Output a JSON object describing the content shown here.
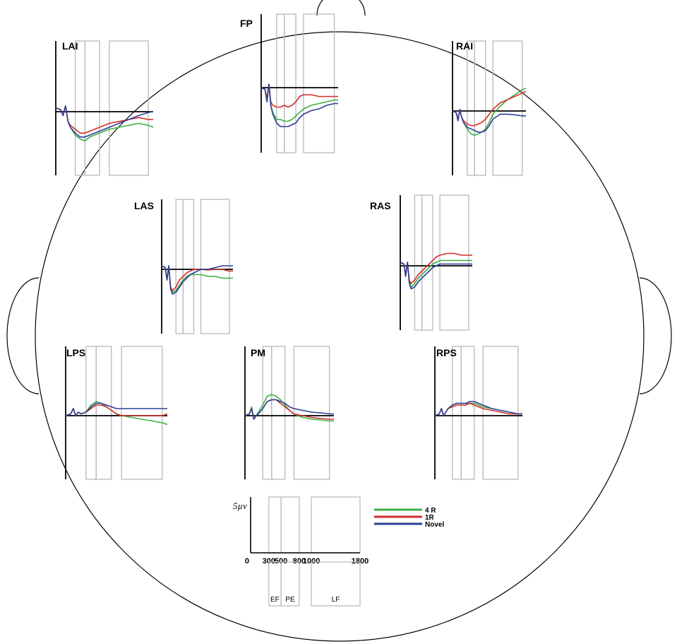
{
  "chart_data": {
    "type": "line",
    "xlabel": "",
    "ylabel": "",
    "scale_label": "5µv",
    "x_ticks": [
      0,
      300,
      500,
      800,
      1000,
      1800
    ],
    "x_tick_labels": [
      "0",
      "300",
      "500",
      "800",
      "1000",
      "1800"
    ],
    "xlim": [
      -100,
      1900
    ],
    "windows": [
      {
        "name": "EF",
        "start": 300,
        "end": 500
      },
      {
        "name": "PE",
        "start": 500,
        "end": 800
      },
      {
        "name": "LF",
        "start": 1000,
        "end": 1800
      }
    ],
    "legend": [
      {
        "name": "4 R",
        "color": "#3cb043"
      },
      {
        "name": "1R",
        "color": "#d42c2c"
      },
      {
        "name": "Novel",
        "color": "#2e3f96"
      }
    ],
    "x": [
      -100,
      0,
      50,
      100,
      150,
      200,
      300,
      400,
      500,
      600,
      700,
      800,
      900,
      1000,
      1200,
      1400,
      1600,
      1800,
      1900
    ],
    "panels": [
      {
        "label": "LAI",
        "series": [
          {
            "name": "4 R",
            "values": [
              1,
              0.5,
              -1,
              1.5,
              -2.5,
              -4,
              -6,
              -7,
              -7.5,
              -6.5,
              -6,
              -5.5,
              -5,
              -4.5,
              -4,
              -3.5,
              -3,
              -3.5,
              -4
            ]
          },
          {
            "name": "1R",
            "values": [
              1,
              0.5,
              -1,
              1.5,
              -2.5,
              -3.5,
              -4.5,
              -5.5,
              -5.5,
              -5,
              -4.5,
              -4,
              -3.5,
              -3,
              -2.5,
              -2,
              -1.5,
              -2,
              -2
            ]
          },
          {
            "name": "Novel",
            "values": [
              1,
              0.5,
              -1,
              1.5,
              -2.5,
              -4,
              -5.5,
              -6.5,
              -6.5,
              -6,
              -5.5,
              -5,
              -4.5,
              -4,
              -3,
              -2,
              -1,
              -0.2,
              0
            ]
          }
        ]
      },
      {
        "label": "FP",
        "series": [
          {
            "name": "4 R",
            "values": [
              0,
              -0.5,
              -4,
              1,
              -5,
              -7,
              -9,
              -9,
              -9.5,
              -9.5,
              -9,
              -8,
              -7,
              -6,
              -5,
              -4.5,
              -4,
              -3.5,
              -3.5
            ]
          },
          {
            "name": "1R",
            "values": [
              0,
              -0.5,
              -3,
              1,
              -4,
              -5,
              -5.5,
              -5.5,
              -5,
              -5.5,
              -5,
              -4,
              -2.5,
              -2,
              -2,
              -2.5,
              -2.5,
              -2.5,
              -2.5
            ]
          },
          {
            "name": "Novel",
            "values": [
              0,
              -0.5,
              -4,
              1,
              -5,
              -7.5,
              -10,
              -11,
              -11,
              -11,
              -10.5,
              -10,
              -8.5,
              -7.5,
              -6.5,
              -6,
              -5,
              -4.5,
              -4.5
            ]
          }
        ]
      },
      {
        "label": "RAI",
        "series": [
          {
            "name": "4 R",
            "values": [
              0,
              -0.5,
              -3,
              0.5,
              -2,
              -3.5,
              -5.5,
              -7,
              -7.5,
              -7,
              -6.5,
              -5.5,
              -3.5,
              -1,
              1.5,
              3.5,
              5,
              6.5,
              7
            ]
          },
          {
            "name": "1R",
            "values": [
              0,
              -0.5,
              -2.5,
              0.5,
              -2,
              -3,
              -4,
              -4.5,
              -4.5,
              -4,
              -3.5,
              -2.5,
              -1,
              0.5,
              2.5,
              3.5,
              4.5,
              5.5,
              6
            ]
          },
          {
            "name": "Novel",
            "values": [
              0,
              -0.5,
              -3,
              0.5,
              -2,
              -3.5,
              -5,
              -5.5,
              -6,
              -6.5,
              -6.5,
              -6,
              -4.5,
              -2.5,
              -1,
              -1,
              -1.2,
              -1.5,
              -1.5
            ]
          }
        ]
      },
      {
        "label": "LAS",
        "series": [
          {
            "name": "4 R",
            "values": [
              1,
              0.5,
              -3,
              1,
              -5,
              -6.5,
              -6,
              -4.5,
              -3,
              -2,
              -1.5,
              -1.5,
              -1.5,
              -1.5,
              -2,
              -2,
              -2.5,
              -2.5,
              -2.5
            ]
          },
          {
            "name": "1R",
            "values": [
              1,
              0.5,
              -3,
              1,
              -5,
              -6,
              -5,
              -3,
              -2,
              -1,
              -0.5,
              0,
              0,
              0,
              -0.2,
              0,
              0,
              -0.5,
              -0.5
            ]
          },
          {
            "name": "Novel",
            "values": [
              1,
              0.5,
              -3,
              1,
              -5.5,
              -7,
              -6.5,
              -5,
              -3.5,
              -2.5,
              -1.5,
              -1,
              -0.5,
              0,
              0,
              0.5,
              1,
              1,
              1
            ]
          }
        ]
      },
      {
        "label": "RAS",
        "series": [
          {
            "name": "4 R",
            "values": [
              1,
              0.5,
              -3,
              1,
              -4.5,
              -6,
              -5,
              -3.5,
              -2.5,
              -1.5,
              -0.5,
              0.5,
              1,
              1.5,
              1.5,
              1.5,
              1.5,
              1.5,
              1.5
            ]
          },
          {
            "name": "1R",
            "values": [
              1,
              0.5,
              -2.5,
              1,
              -4,
              -5,
              -4,
              -2.5,
              -1.5,
              -0.5,
              0.5,
              1.5,
              2.5,
              3,
              3.5,
              3.5,
              3,
              3,
              3
            ]
          },
          {
            "name": "Novel",
            "values": [
              1,
              0.5,
              -3,
              1,
              -5,
              -6.5,
              -6,
              -4.5,
              -3.5,
              -2.5,
              -1.5,
              -0.5,
              0,
              0.5,
              0.5,
              0.5,
              0.5,
              0.5,
              0.5
            ]
          }
        ]
      },
      {
        "label": "LPS",
        "series": [
          {
            "name": "4 R",
            "values": [
              0,
              0.5,
              2,
              0,
              1,
              0.5,
              1,
              3,
              4,
              3.5,
              2.5,
              1.5,
              0.5,
              0,
              -0.5,
              -1,
              -1.5,
              -2,
              -2.5
            ]
          },
          {
            "name": "1R",
            "values": [
              0,
              0.5,
              2,
              0,
              1,
              0.5,
              1,
              2,
              3,
              3,
              2.5,
              1.5,
              0.5,
              0,
              0,
              0,
              0,
              0,
              0.5
            ]
          },
          {
            "name": "Novel",
            "values": [
              0,
              0.5,
              2,
              0,
              1,
              0.5,
              1,
              2.5,
              3.5,
              3.5,
              3,
              2.5,
              2,
              2,
              2,
              2,
              2,
              2,
              2
            ]
          }
        ]
      },
      {
        "label": "PM",
        "series": [
          {
            "name": "4 R",
            "values": [
              0,
              0.5,
              2.5,
              -1,
              0,
              1,
              3,
              5.5,
              6,
              5.5,
              4.5,
              3,
              1.5,
              0.5,
              -0.5,
              -1,
              -1.2,
              -1.5,
              -1.5
            ]
          },
          {
            "name": "1R",
            "values": [
              0,
              0.5,
              2,
              -1,
              0,
              0.5,
              2,
              4,
              4.5,
              4.5,
              3.5,
              2.5,
              1.5,
              0.5,
              0,
              -0.5,
              -0.8,
              -1,
              -1
            ]
          },
          {
            "name": "Novel",
            "values": [
              0,
              0.5,
              2,
              -1,
              0,
              0.5,
              2,
              4,
              4.5,
              4.5,
              4,
              3.5,
              2.5,
              2,
              1.5,
              1,
              0.8,
              0.5,
              0.5
            ]
          }
        ]
      },
      {
        "label": "RPS",
        "series": [
          {
            "name": "4 R",
            "values": [
              0,
              0.5,
              2,
              0,
              1,
              2,
              3,
              3.5,
              3.5,
              3.5,
              3.5,
              3.5,
              3,
              2.5,
              2,
              1.5,
              1,
              0.5,
              0.5
            ]
          },
          {
            "name": "1R",
            "values": [
              0,
              0.5,
              2,
              0,
              1,
              2,
              2.5,
              3,
              3,
              3,
              3.5,
              3,
              2.5,
              2,
              1.5,
              1,
              0.5,
              0.5,
              0.5
            ]
          },
          {
            "name": "Novel",
            "values": [
              0,
              0.5,
              2,
              0,
              1,
              2,
              3,
              3.5,
              3.5,
              3.5,
              4,
              4,
              3.5,
              3,
              2,
              1.5,
              1,
              0.5,
              0.5
            ]
          }
        ]
      }
    ]
  }
}
